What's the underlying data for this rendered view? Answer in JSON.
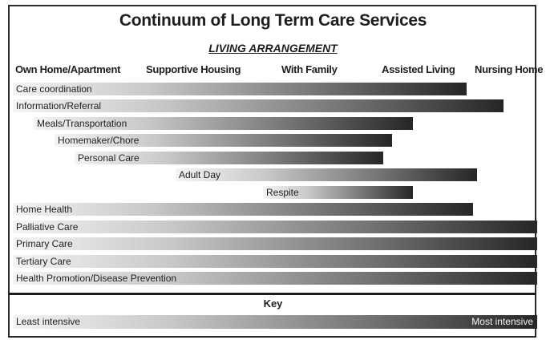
{
  "title": "Continuum of Long Term Care Services",
  "subtitle": "LIVING ARRANGEMENT",
  "columns": [
    "Own Home/Apartment",
    "Supportive Housing",
    "With Family",
    "Assisted Living",
    "Nursing Home"
  ],
  "services": [
    "Care coordination",
    "Information/Referral",
    "Meals/Transportation",
    "Homemaker/Chore",
    "Personal Care",
    "Adult Day",
    "Respite",
    "Home Health",
    "Palliative Care",
    "Primary Care",
    "Tertiary Care",
    "Health Promotion/Disease Prevention"
  ],
  "key": {
    "title": "Key",
    "least": "Least intensive",
    "most": "Most intensive"
  },
  "colors": {
    "gradient_light": "#f4f4f4",
    "gradient_dark": "#262626",
    "border": "#2a2a2a"
  }
}
